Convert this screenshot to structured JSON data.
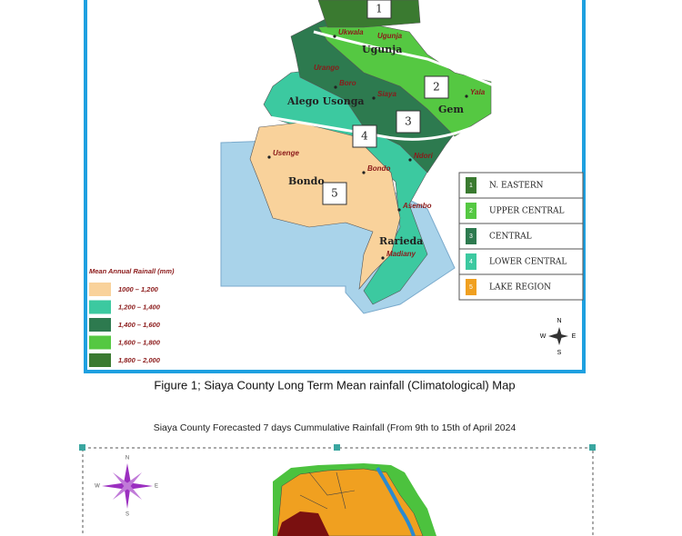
{
  "figure1": {
    "zones": [
      "1",
      "2",
      "3",
      "4",
      "5"
    ],
    "places": [
      "Ukwala",
      "Ugunja",
      "Ugunja",
      "Urango",
      "Boro",
      "Siaya",
      "Alego Usonga",
      "Gem",
      "Yala",
      "Ndori",
      "Bondo",
      "Bondo",
      "Usenge",
      "Asembo",
      "Rarieda",
      "Madiany"
    ],
    "legend": {
      "title": "Mean Annual Rainall (mm)",
      "items": [
        "1000 – 1,200",
        "1,200 – 1,400",
        "1,400 – 1,600",
        "1,600 – 1,800",
        "1,800 – 2,000"
      ]
    },
    "zone_legend": [
      {
        "number": "1",
        "name": "N. EASTERN"
      },
      {
        "number": "2",
        "name": "UPPER CENTRAL"
      },
      {
        "number": "3",
        "name": "CENTRAL"
      },
      {
        "number": "4",
        "name": "LOWER CENTRAL"
      },
      {
        "number": "5",
        "name": "LAKE REGION"
      }
    ],
    "compass": [
      "N",
      "W",
      "E",
      "S"
    ],
    "caption": "Figure 1; Siaya County Long Term Mean rainfall (Climatological) Map"
  },
  "figure2": {
    "title": "Siaya County Forecasted 7 days Cummulative Rainfall (From 9th to 15th of April 2024",
    "compass": [
      "N",
      "W",
      "E",
      "S"
    ]
  }
}
